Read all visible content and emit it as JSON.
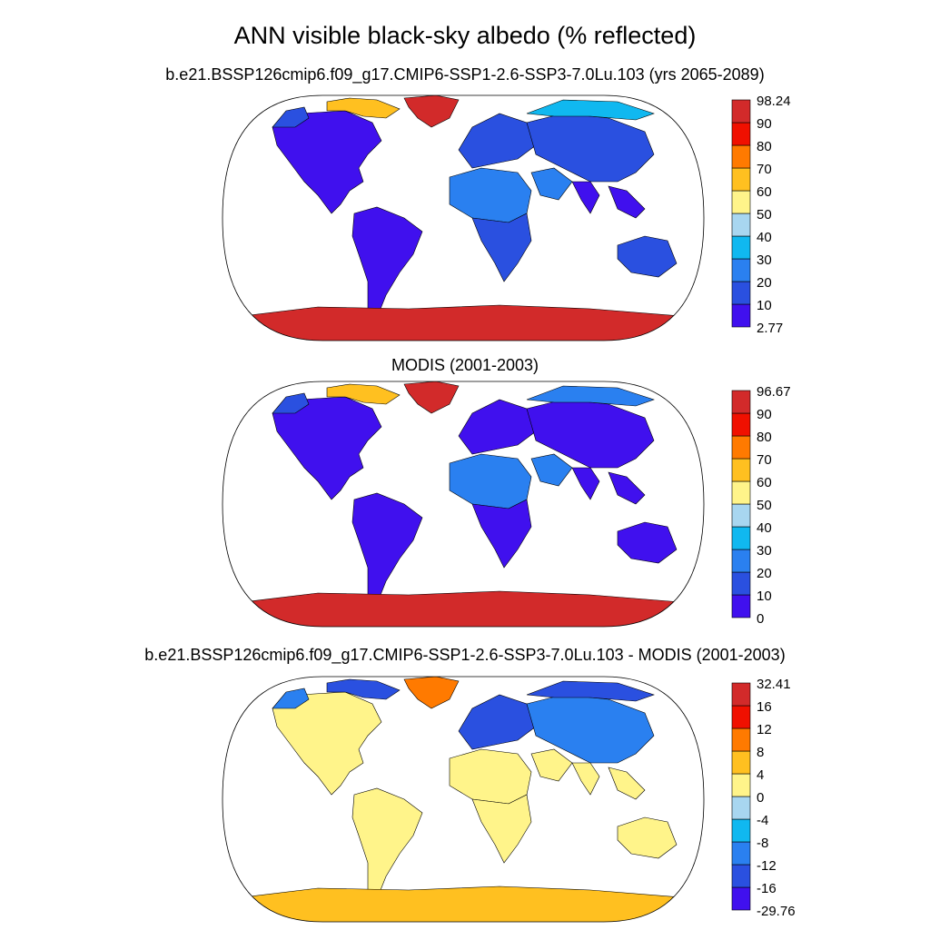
{
  "title": "ANN visible black-sky albedo (% reflected)",
  "colors": {
    "ocean": "#ffffff",
    "coast": "#000000",
    "scale": [
      "#4010ee",
      "#2a50e0",
      "#2a80f0",
      "#10b8f0",
      "#a8d6f0",
      "#fff48a",
      "#ffc020",
      "#ff7a00",
      "#f01000",
      "#d22a2a"
    ]
  },
  "panels": [
    {
      "subtitle": "b.e21.BSSP126cmip6.f09_g17.CMIP6-SSP1-2.6-SSP3-7.0Lu.103 (yrs 2065-2089)",
      "colorbar": {
        "min": "2.77",
        "max": "98.24",
        "ticks": [
          "10",
          "20",
          "30",
          "40",
          "50",
          "60",
          "70",
          "80",
          "90"
        ]
      },
      "regions": {
        "north_america": "#4010ee",
        "north_america_arctic": "#ffc020",
        "alaska": "#2a50e0",
        "greenland": "#d22a2a",
        "south_america": "#4010ee",
        "europe": "#2a50e0",
        "north_africa": "#2a80f0",
        "south_africa": "#2a50e0",
        "middle_east": "#2a80f0",
        "asia": "#2a50e0",
        "siberia": "#10b8f0",
        "india": "#4010ee",
        "se_asia": "#4010ee",
        "australia": "#2a50e0",
        "antarctica": "#d22a2a"
      }
    },
    {
      "subtitle": "MODIS (2001-2003)",
      "colorbar": {
        "min": "0",
        "max": "96.67",
        "ticks": [
          "10",
          "20",
          "30",
          "40",
          "50",
          "60",
          "70",
          "80",
          "90"
        ]
      },
      "regions": {
        "north_america": "#4010ee",
        "north_america_arctic": "#ffc020",
        "alaska": "#2a50e0",
        "greenland": "#d22a2a",
        "south_america": "#4010ee",
        "europe": "#4010ee",
        "north_africa": "#2a80f0",
        "south_africa": "#4010ee",
        "middle_east": "#2a80f0",
        "asia": "#4010ee",
        "siberia": "#2a80f0",
        "india": "#4010ee",
        "se_asia": "#4010ee",
        "australia": "#4010ee",
        "antarctica": "#d22a2a"
      }
    },
    {
      "subtitle": "b.e21.BSSP126cmip6.f09_g17.CMIP6-SSP1-2.6-SSP3-7.0Lu.103 - MODIS (2001-2003)",
      "colorbar": {
        "min": "-29.76",
        "max": "32.41",
        "ticks": [
          "-16",
          "-12",
          "-8",
          "-4",
          "0",
          "4",
          "8",
          "12",
          "16"
        ]
      },
      "regions": {
        "north_america": "#fff48a",
        "north_america_arctic": "#2a50e0",
        "alaska": "#2a80f0",
        "greenland": "#ff7a00",
        "south_america": "#fff48a",
        "europe": "#2a50e0",
        "north_africa": "#fff48a",
        "south_africa": "#fff48a",
        "middle_east": "#fff48a",
        "asia": "#2a80f0",
        "siberia": "#2a50e0",
        "india": "#fff48a",
        "se_asia": "#fff48a",
        "australia": "#fff48a",
        "antarctica": "#ffc020"
      }
    }
  ]
}
